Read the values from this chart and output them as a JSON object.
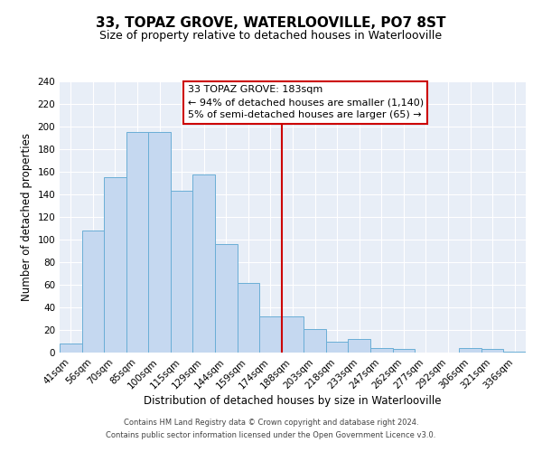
{
  "title": "33, TOPAZ GROVE, WATERLOOVILLE, PO7 8ST",
  "subtitle": "Size of property relative to detached houses in Waterlooville",
  "xlabel": "Distribution of detached houses by size in Waterlooville",
  "ylabel": "Number of detached properties",
  "bar_labels": [
    "41sqm",
    "56sqm",
    "70sqm",
    "85sqm",
    "100sqm",
    "115sqm",
    "129sqm",
    "144sqm",
    "159sqm",
    "174sqm",
    "188sqm",
    "203sqm",
    "218sqm",
    "233sqm",
    "247sqm",
    "262sqm",
    "277sqm",
    "292sqm",
    "306sqm",
    "321sqm",
    "336sqm"
  ],
  "bar_values": [
    8,
    108,
    155,
    195,
    195,
    143,
    158,
    96,
    62,
    32,
    32,
    21,
    10,
    12,
    4,
    3,
    0,
    0,
    4,
    3,
    1
  ],
  "bar_color": "#c5d8f0",
  "bar_edge_color": "#6aaed6",
  "background_color": "#e8eef7",
  "vline_x_index": 10,
  "vline_color": "#cc0000",
  "annotation_title": "33 TOPAZ GROVE: 183sqm",
  "annotation_line1": "← 94% of detached houses are smaller (1,140)",
  "annotation_line2": "5% of semi-detached houses are larger (65) →",
  "annotation_box_color": "#cc0000",
  "ylim": [
    0,
    240
  ],
  "yticks": [
    0,
    20,
    40,
    60,
    80,
    100,
    120,
    140,
    160,
    180,
    200,
    220,
    240
  ],
  "footer_line1": "Contains HM Land Registry data © Crown copyright and database right 2024.",
  "footer_line2": "Contains public sector information licensed under the Open Government Licence v3.0.",
  "title_fontsize": 11,
  "subtitle_fontsize": 9,
  "axis_label_fontsize": 8.5,
  "tick_fontsize": 7.5,
  "annotation_fontsize": 8,
  "footer_fontsize": 6
}
